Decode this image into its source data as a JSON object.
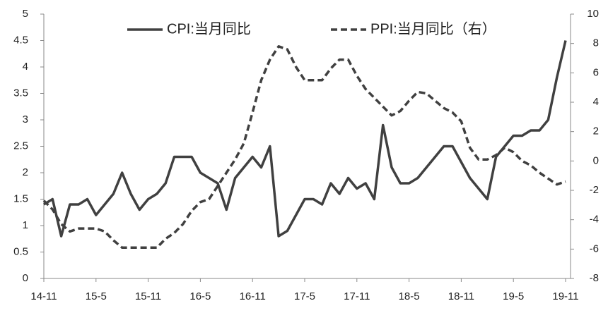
{
  "chart_data": {
    "type": "line",
    "categories": [
      "14-11",
      null,
      null,
      null,
      null,
      null,
      "15-5",
      null,
      null,
      null,
      null,
      null,
      "15-11",
      null,
      null,
      null,
      null,
      null,
      "16-5",
      null,
      null,
      null,
      null,
      null,
      "16-11",
      null,
      null,
      null,
      null,
      null,
      "17-5",
      null,
      null,
      null,
      null,
      null,
      "17-11",
      null,
      null,
      null,
      null,
      null,
      "18-5",
      null,
      null,
      null,
      null,
      null,
      "18-11",
      null,
      null,
      null,
      null,
      null,
      "19-5",
      null,
      null,
      null,
      null,
      null,
      "19-11"
    ],
    "series": [
      {
        "name": "CPI:当月同比",
        "color": "#404040",
        "line_style": "solid",
        "values": [
          1.4,
          1.5,
          0.8,
          1.4,
          1.4,
          1.5,
          1.2,
          1.4,
          1.6,
          2.0,
          1.6,
          1.3,
          1.5,
          1.6,
          1.8,
          2.3,
          2.3,
          2.3,
          2.0,
          1.9,
          1.8,
          1.3,
          1.9,
          2.1,
          2.3,
          2.1,
          2.5,
          0.8,
          0.9,
          1.2,
          1.5,
          1.5,
          1.4,
          1.8,
          1.6,
          1.9,
          1.7,
          1.8,
          1.5,
          2.9,
          2.1,
          1.8,
          1.8,
          1.9,
          2.1,
          2.3,
          2.5,
          2.5,
          2.2,
          1.9,
          1.7,
          1.5,
          2.3,
          2.5,
          2.7,
          2.7,
          2.8,
          2.8,
          3.0,
          3.8,
          4.5
        ]
      },
      {
        "name": "PPI:当月同比（右）",
        "color": "#404040",
        "line_style": "dashed",
        "axis": "y2",
        "values": [
          -2.7,
          -3.3,
          -4.3,
          -4.8,
          -4.6,
          -4.6,
          -4.6,
          -4.8,
          -5.4,
          -5.9,
          -5.9,
          -5.9,
          -5.9,
          -5.9,
          -5.3,
          -4.9,
          -4.3,
          -3.4,
          -2.8,
          -2.6,
          -1.7,
          -0.8,
          0.1,
          1.2,
          3.3,
          5.5,
          6.9,
          7.8,
          7.6,
          6.4,
          5.5,
          5.5,
          5.5,
          6.3,
          6.9,
          6.9,
          5.8,
          4.9,
          4.3,
          3.7,
          3.1,
          3.4,
          4.1,
          4.7,
          4.6,
          4.1,
          3.6,
          3.3,
          2.7,
          0.9,
          0.1,
          0.1,
          0.4,
          0.9,
          0.6,
          0.0,
          -0.3,
          -0.8,
          -1.2,
          -1.6,
          -1.4
        ]
      }
    ],
    "ylim": [
      0,
      5
    ],
    "yticks": [
      0,
      0.5,
      1,
      1.5,
      2,
      2.5,
      3,
      3.5,
      4,
      4.5,
      5
    ],
    "y2lim": [
      -8,
      10
    ],
    "y2ticks": [
      -8,
      -6,
      -4,
      -2,
      0,
      2,
      4,
      6,
      8,
      10
    ],
    "grid": false,
    "legend": "top"
  }
}
